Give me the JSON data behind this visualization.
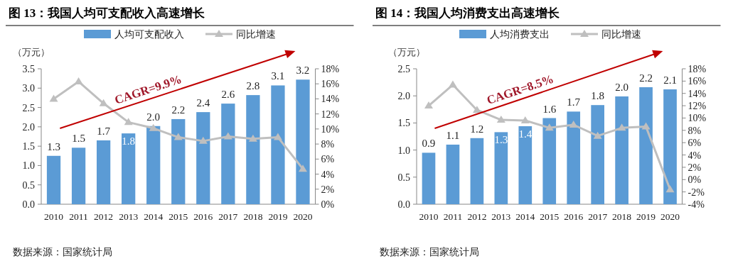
{
  "chart_data": [
    {
      "type": "bar",
      "title": "图 13：我国人均可支配收入高速增长",
      "ylabel": "（万元）",
      "categories": [
        "2010",
        "2011",
        "2012",
        "2013",
        "2014",
        "2015",
        "2016",
        "2017",
        "2018",
        "2019",
        "2020"
      ],
      "series": [
        {
          "name": "人均可支配收入",
          "color": "#5b9bd5",
          "values": [
            1.25,
            1.46,
            1.65,
            1.83,
            2.02,
            2.2,
            2.38,
            2.6,
            2.82,
            3.07,
            3.22
          ],
          "value_labels": [
            "1.3",
            "1.5",
            "1.7",
            "1.8",
            "2.0",
            "2.2",
            "2.4",
            "2.6",
            "2.8",
            "3.1",
            "3.2"
          ]
        },
        {
          "name": "同比增速",
          "type": "line",
          "axis": "y2",
          "color": "#bfbfbf",
          "values": [
            14,
            16.3,
            13.4,
            10.9,
            10.1,
            8.9,
            8.4,
            9.0,
            8.7,
            8.9,
            4.7
          ]
        }
      ],
      "ylim": [
        0,
        3.5
      ],
      "yticks": [
        {
          "value": 0,
          "label": "0.0"
        },
        {
          "value": 0.5,
          "label": "0.5"
        },
        {
          "value": 1,
          "label": "1.0"
        },
        {
          "value": 1.5,
          "label": "1.5"
        },
        {
          "value": 2,
          "label": "2.0"
        },
        {
          "value": 2.5,
          "label": "2.5"
        },
        {
          "value": 3,
          "label": "3.0"
        },
        {
          "value": 3.5,
          "label": "3.5"
        }
      ],
      "y2lim": [
        0,
        18
      ],
      "y2ticks": [
        {
          "value": 0,
          "label": "0%"
        },
        {
          "value": 2,
          "label": "2%"
        },
        {
          "value": 4,
          "label": "4%"
        },
        {
          "value": 6,
          "label": "6%"
        },
        {
          "value": 8,
          "label": "8%"
        },
        {
          "value": 10,
          "label": "10%"
        },
        {
          "value": 12,
          "label": "12%"
        },
        {
          "value": 14,
          "label": "14%"
        },
        {
          "value": 16,
          "label": "16%"
        },
        {
          "value": 18,
          "label": "18%"
        }
      ],
      "marker": "triangle",
      "legend": "top",
      "annotations": [
        "CAGR=9.9%",
        "数据来源：国家统计局"
      ]
    },
    {
      "type": "bar",
      "title": "图 14：我国人均消费支出高速增长",
      "ylabel": "（万元）",
      "categories": [
        "2010",
        "2011",
        "2012",
        "2013",
        "2014",
        "2015",
        "2016",
        "2017",
        "2018",
        "2019",
        "2020"
      ],
      "series": [
        {
          "name": "人均消费支出",
          "color": "#5b9bd5",
          "values": [
            0.95,
            1.1,
            1.22,
            1.33,
            1.44,
            1.59,
            1.71,
            1.83,
            1.99,
            2.16,
            2.12
          ],
          "value_labels": [
            "0.9",
            "1.1",
            "1.2",
            "1.3",
            "1.4",
            "1.6",
            "1.7",
            "1.8",
            "2.0",
            "2.2",
            "2.1"
          ]
        },
        {
          "name": "同比增速",
          "type": "line",
          "axis": "y2",
          "color": "#bfbfbf",
          "values": [
            12,
            15.4,
            11.3,
            9.7,
            9.6,
            8.4,
            8.9,
            7.1,
            8.4,
            8.6,
            -1.6
          ]
        }
      ],
      "ylim": [
        0,
        2.5
      ],
      "yticks": [
        {
          "value": 0,
          "label": "0.0"
        },
        {
          "value": 0.5,
          "label": "0.5"
        },
        {
          "value": 1,
          "label": "1.0"
        },
        {
          "value": 1.5,
          "label": "1.5"
        },
        {
          "value": 2,
          "label": "2.0"
        },
        {
          "value": 2.5,
          "label": "2.5"
        }
      ],
      "y2lim": [
        -4,
        18
      ],
      "y2ticks": [
        {
          "value": -4,
          "label": "-4%"
        },
        {
          "value": -2,
          "label": "-2%"
        },
        {
          "value": 0,
          "label": "0%"
        },
        {
          "value": 2,
          "label": "2%"
        },
        {
          "value": 4,
          "label": "4%"
        },
        {
          "value": 6,
          "label": "6%"
        },
        {
          "value": 8,
          "label": "8%"
        },
        {
          "value": 10,
          "label": "10%"
        },
        {
          "value": 12,
          "label": "12%"
        },
        {
          "value": 14,
          "label": "14%"
        },
        {
          "value": 16,
          "label": "16%"
        },
        {
          "value": 18,
          "label": "18%"
        }
      ],
      "marker": "triangle",
      "legend": "top",
      "annotations": [
        "CAGR=8.5%",
        "数据来源：国家统计局"
      ]
    }
  ]
}
